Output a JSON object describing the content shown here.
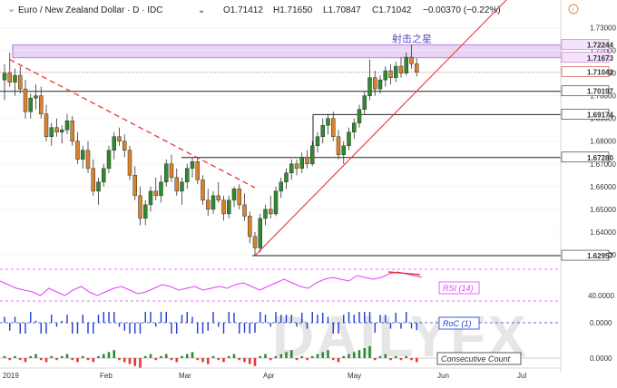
{
  "header": {
    "symbol": "Euro / New Zealand Dollar · D · IDC",
    "open": "O1.71412",
    "high": "H1.71650",
    "low": "L1.70847",
    "close": "C1.71042",
    "change": "−0.00370 (−0.22%)",
    "colors": {
      "up": "#2e8b2e",
      "down": "#c0392b"
    }
  },
  "chart_data": [
    {
      "type": "candlestick",
      "title": "Euro / New Zealand Dollar · D · IDC",
      "ylim": [
        1.624,
        1.735
      ],
      "y_ticks": [
        1.63,
        1.64,
        1.65,
        1.66,
        1.67,
        1.68,
        1.69,
        1.7,
        1.71,
        1.72,
        1.73
      ],
      "y_tick_labels": [
        "1.63000",
        "1.64000",
        "1.65000",
        "1.66000",
        "1.67000",
        "1.68000",
        "1.69000",
        "1.70000",
        "1.71000",
        "1.72000",
        "1.73000"
      ],
      "x_labels": [
        "2019",
        "Feb",
        "Mar",
        "Apr",
        "May",
        "Jun",
        "Jul"
      ],
      "highlight_labels": [
        {
          "text": "1.72244",
          "value": 1.72244,
          "color": "#cc66cc"
        },
        {
          "text": "1.71673",
          "value": 1.71673,
          "color": "#cc66cc"
        },
        {
          "text": "1.71042",
          "value": 1.71042,
          "color": "#c0392b"
        },
        {
          "text": "1.70197",
          "value": 1.70197,
          "color": "#111111"
        },
        {
          "text": "1.69174",
          "value": 1.69174,
          "color": "#111111"
        },
        {
          "text": "1.67280",
          "value": 1.6728,
          "color": "#111111"
        },
        {
          "text": "1.62957",
          "value": 1.62957,
          "color": "#111111"
        }
      ],
      "resistance_zone": [
        1.71673,
        1.72244
      ],
      "annotation": "射击之星",
      "colors": {
        "up": "#2e8b2e",
        "down": "#d9822b",
        "downtrend": "#e53935",
        "uptrend": "#e53935",
        "zone": "#e8d4f5"
      },
      "candles": [
        {
          "o": 1.707,
          "h": 1.714,
          "l": 1.698,
          "c": 1.71
        },
        {
          "o": 1.71,
          "h": 1.719,
          "l": 1.704,
          "c": 1.706
        },
        {
          "o": 1.706,
          "h": 1.712,
          "l": 1.7,
          "c": 1.709
        },
        {
          "o": 1.709,
          "h": 1.713,
          "l": 1.701,
          "c": 1.703
        },
        {
          "o": 1.703,
          "h": 1.707,
          "l": 1.69,
          "c": 1.693
        },
        {
          "o": 1.693,
          "h": 1.701,
          "l": 1.69,
          "c": 1.699
        },
        {
          "o": 1.699,
          "h": 1.705,
          "l": 1.694,
          "c": 1.7
        },
        {
          "o": 1.7,
          "h": 1.704,
          "l": 1.69,
          "c": 1.692
        },
        {
          "o": 1.692,
          "h": 1.696,
          "l": 1.68,
          "c": 1.682
        },
        {
          "o": 1.682,
          "h": 1.688,
          "l": 1.678,
          "c": 1.686
        },
        {
          "o": 1.686,
          "h": 1.69,
          "l": 1.682,
          "c": 1.684
        },
        {
          "o": 1.684,
          "h": 1.687,
          "l": 1.679,
          "c": 1.685
        },
        {
          "o": 1.685,
          "h": 1.692,
          "l": 1.683,
          "c": 1.689
        },
        {
          "o": 1.689,
          "h": 1.691,
          "l": 1.678,
          "c": 1.68
        },
        {
          "o": 1.68,
          "h": 1.684,
          "l": 1.67,
          "c": 1.672
        },
        {
          "o": 1.672,
          "h": 1.678,
          "l": 1.668,
          "c": 1.676
        },
        {
          "o": 1.676,
          "h": 1.68,
          "l": 1.666,
          "c": 1.668
        },
        {
          "o": 1.668,
          "h": 1.672,
          "l": 1.656,
          "c": 1.658
        },
        {
          "o": 1.658,
          "h": 1.664,
          "l": 1.652,
          "c": 1.662
        },
        {
          "o": 1.662,
          "h": 1.67,
          "l": 1.66,
          "c": 1.668
        },
        {
          "o": 1.668,
          "h": 1.678,
          "l": 1.666,
          "c": 1.676
        },
        {
          "o": 1.676,
          "h": 1.684,
          "l": 1.672,
          "c": 1.682
        },
        {
          "o": 1.682,
          "h": 1.686,
          "l": 1.678,
          "c": 1.68
        },
        {
          "o": 1.68,
          "h": 1.683,
          "l": 1.673,
          "c": 1.676
        },
        {
          "o": 1.676,
          "h": 1.678,
          "l": 1.663,
          "c": 1.665
        },
        {
          "o": 1.665,
          "h": 1.669,
          "l": 1.654,
          "c": 1.656
        },
        {
          "o": 1.656,
          "h": 1.66,
          "l": 1.643,
          "c": 1.646
        },
        {
          "o": 1.646,
          "h": 1.654,
          "l": 1.643,
          "c": 1.652
        },
        {
          "o": 1.652,
          "h": 1.66,
          "l": 1.649,
          "c": 1.658
        },
        {
          "o": 1.658,
          "h": 1.664,
          "l": 1.654,
          "c": 1.656
        },
        {
          "o": 1.656,
          "h": 1.665,
          "l": 1.653,
          "c": 1.662
        },
        {
          "o": 1.662,
          "h": 1.672,
          "l": 1.66,
          "c": 1.67
        },
        {
          "o": 1.67,
          "h": 1.674,
          "l": 1.662,
          "c": 1.664
        },
        {
          "o": 1.664,
          "h": 1.668,
          "l": 1.656,
          "c": 1.658
        },
        {
          "o": 1.658,
          "h": 1.664,
          "l": 1.652,
          "c": 1.662
        },
        {
          "o": 1.662,
          "h": 1.67,
          "l": 1.659,
          "c": 1.668
        },
        {
          "o": 1.668,
          "h": 1.673,
          "l": 1.664,
          "c": 1.671
        },
        {
          "o": 1.671,
          "h": 1.673,
          "l": 1.661,
          "c": 1.663
        },
        {
          "o": 1.663,
          "h": 1.665,
          "l": 1.652,
          "c": 1.654
        },
        {
          "o": 1.654,
          "h": 1.659,
          "l": 1.647,
          "c": 1.65
        },
        {
          "o": 1.65,
          "h": 1.658,
          "l": 1.648,
          "c": 1.656
        },
        {
          "o": 1.656,
          "h": 1.662,
          "l": 1.653,
          "c": 1.654
        },
        {
          "o": 1.654,
          "h": 1.656,
          "l": 1.645,
          "c": 1.648
        },
        {
          "o": 1.648,
          "h": 1.656,
          "l": 1.646,
          "c": 1.654
        },
        {
          "o": 1.654,
          "h": 1.66,
          "l": 1.651,
          "c": 1.659
        },
        {
          "o": 1.659,
          "h": 1.661,
          "l": 1.65,
          "c": 1.652
        },
        {
          "o": 1.652,
          "h": 1.657,
          "l": 1.645,
          "c": 1.647
        },
        {
          "o": 1.647,
          "h": 1.649,
          "l": 1.635,
          "c": 1.638
        },
        {
          "o": 1.638,
          "h": 1.64,
          "l": 1.6296,
          "c": 1.633
        },
        {
          "o": 1.633,
          "h": 1.648,
          "l": 1.631,
          "c": 1.646
        },
        {
          "o": 1.646,
          "h": 1.652,
          "l": 1.643,
          "c": 1.65
        },
        {
          "o": 1.65,
          "h": 1.656,
          "l": 1.646,
          "c": 1.648
        },
        {
          "o": 1.648,
          "h": 1.66,
          "l": 1.647,
          "c": 1.658
        },
        {
          "o": 1.658,
          "h": 1.664,
          "l": 1.655,
          "c": 1.662
        },
        {
          "o": 1.662,
          "h": 1.668,
          "l": 1.659,
          "c": 1.666
        },
        {
          "o": 1.666,
          "h": 1.672,
          "l": 1.663,
          "c": 1.67
        },
        {
          "o": 1.67,
          "h": 1.672,
          "l": 1.665,
          "c": 1.668
        },
        {
          "o": 1.668,
          "h": 1.675,
          "l": 1.666,
          "c": 1.673
        },
        {
          "o": 1.673,
          "h": 1.676,
          "l": 1.668,
          "c": 1.67
        },
        {
          "o": 1.67,
          "h": 1.68,
          "l": 1.669,
          "c": 1.678
        },
        {
          "o": 1.678,
          "h": 1.684,
          "l": 1.675,
          "c": 1.682
        },
        {
          "o": 1.682,
          "h": 1.69,
          "l": 1.679,
          "c": 1.687
        },
        {
          "o": 1.687,
          "h": 1.692,
          "l": 1.683,
          "c": 1.69
        },
        {
          "o": 1.69,
          "h": 1.693,
          "l": 1.68,
          "c": 1.682
        },
        {
          "o": 1.682,
          "h": 1.685,
          "l": 1.672,
          "c": 1.674
        },
        {
          "o": 1.674,
          "h": 1.68,
          "l": 1.67,
          "c": 1.678
        },
        {
          "o": 1.678,
          "h": 1.686,
          "l": 1.676,
          "c": 1.684
        },
        {
          "o": 1.684,
          "h": 1.69,
          "l": 1.681,
          "c": 1.688
        },
        {
          "o": 1.688,
          "h": 1.696,
          "l": 1.686,
          "c": 1.694
        },
        {
          "o": 1.694,
          "h": 1.702,
          "l": 1.692,
          "c": 1.7
        },
        {
          "o": 1.7,
          "h": 1.716,
          "l": 1.698,
          "c": 1.708
        },
        {
          "o": 1.708,
          "h": 1.711,
          "l": 1.7,
          "c": 1.703
        },
        {
          "o": 1.703,
          "h": 1.709,
          "l": 1.701,
          "c": 1.707
        },
        {
          "o": 1.707,
          "h": 1.713,
          "l": 1.704,
          "c": 1.711
        },
        {
          "o": 1.711,
          "h": 1.714,
          "l": 1.705,
          "c": 1.708
        },
        {
          "o": 1.708,
          "h": 1.715,
          "l": 1.706,
          "c": 1.713
        },
        {
          "o": 1.713,
          "h": 1.717,
          "l": 1.708,
          "c": 1.71
        },
        {
          "o": 1.71,
          "h": 1.719,
          "l": 1.709,
          "c": 1.717
        },
        {
          "o": 1.717,
          "h": 1.7224,
          "l": 1.712,
          "c": 1.7141
        },
        {
          "o": 1.7141,
          "h": 1.7165,
          "l": 1.7085,
          "c": 1.7104
        }
      ]
    },
    {
      "type": "line",
      "title": "RSI (14)",
      "y_tick_labels": [
        "40.0000"
      ],
      "colors": {
        "line": "#e040fb",
        "box": "#e040fb"
      }
    },
    {
      "type": "bar",
      "title": "RoC (1)",
      "y_tick_labels": [
        "0.0000"
      ],
      "colors": {
        "bars": "#1f3bd1",
        "box": "#1f3bd1"
      }
    },
    {
      "type": "bar",
      "title": "Consecutive Count",
      "y_tick_labels": [
        "0.0000"
      ],
      "colors": {
        "up": "#2e8b2e",
        "down": "#e53935",
        "box": "#333333"
      }
    }
  ],
  "watermark": "DAILYFX"
}
